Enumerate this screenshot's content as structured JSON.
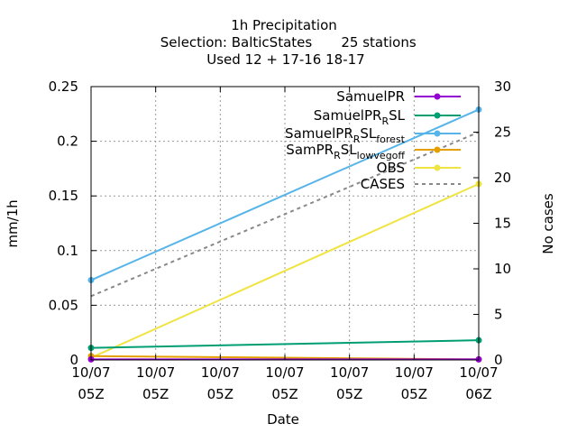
{
  "chart_data": {
    "type": "line",
    "title": "1h Precipitation",
    "subtitle_selection": "Selection: BalticStates",
    "subtitle_stations": "25 stations",
    "subtitle_used": "Used  12 + 17-16 18-17",
    "xlabel": "Date",
    "ylabel": "mm/1h",
    "y2label": "No cases",
    "x_ticks": [
      {
        "line1": "10/07",
        "line2": "05Z"
      },
      {
        "line1": "10/07",
        "line2": "05Z"
      },
      {
        "line1": "10/07",
        "line2": "05Z"
      },
      {
        "line1": "10/07",
        "line2": "05Z"
      },
      {
        "line1": "10/07",
        "line2": "05Z"
      },
      {
        "line1": "10/07",
        "line2": "05Z"
      },
      {
        "line1": "10/07",
        "line2": "06Z"
      }
    ],
    "ylim": [
      0,
      0.25
    ],
    "y_ticks": [
      "0",
      "0.05",
      "0.1",
      "0.15",
      "0.2",
      "0.25"
    ],
    "y2lim": [
      0,
      30
    ],
    "y2_ticks": [
      "0",
      "5",
      "10",
      "15",
      "20",
      "25",
      "30"
    ],
    "grid": true,
    "legend_position": "top-right",
    "series": [
      {
        "name_base": "SamuelPR",
        "name_sub": "",
        "name_tail": "",
        "name_tail_sub": "",
        "color": "#9400d3",
        "axis": "y",
        "x": [
          "10/07 05Z",
          "10/07 06Z"
        ],
        "values": [
          0.0005,
          0.0005
        ],
        "style": "line+points"
      },
      {
        "name_base": "SamuelPR",
        "name_sub": "R",
        "name_tail": "SL",
        "name_tail_sub": "",
        "color": "#009e73",
        "axis": "y",
        "x": [
          "10/07 05Z",
          "10/07 06Z"
        ],
        "values": [
          0.011,
          0.018
        ],
        "style": "line+points"
      },
      {
        "name_base": "SamuelPR",
        "name_sub": "R",
        "name_tail": "SL",
        "name_tail_sub": "forest",
        "color": "#56b4e9",
        "axis": "y",
        "x": [
          "10/07 05Z",
          "10/07 06Z"
        ],
        "values": [
          0.073,
          0.229
        ],
        "style": "line+points"
      },
      {
        "name_base": "SamPR",
        "name_sub": "R",
        "name_tail": "SL",
        "name_tail_sub": "lowvegoff",
        "color": "#e69f00",
        "axis": "y",
        "x": [
          "10/07 05Z",
          "10/07 06Z"
        ],
        "values": [
          0.0035,
          0.0005
        ],
        "style": "line+points"
      },
      {
        "name_base": "OBS",
        "name_sub": "",
        "name_tail": "",
        "name_tail_sub": "",
        "color": "#f0e442",
        "axis": "y",
        "x": [
          "10/07 05Z",
          "10/07 06Z"
        ],
        "values": [
          0.002,
          0.161
        ],
        "style": "line+points"
      },
      {
        "name_base": "CASES",
        "name_sub": "",
        "name_tail": "",
        "name_tail_sub": "",
        "color": "#888888",
        "axis": "y2",
        "x": [
          "10/07 05Z",
          "10/07 06Z"
        ],
        "values": [
          7,
          25
        ],
        "style": "dashed"
      }
    ]
  }
}
